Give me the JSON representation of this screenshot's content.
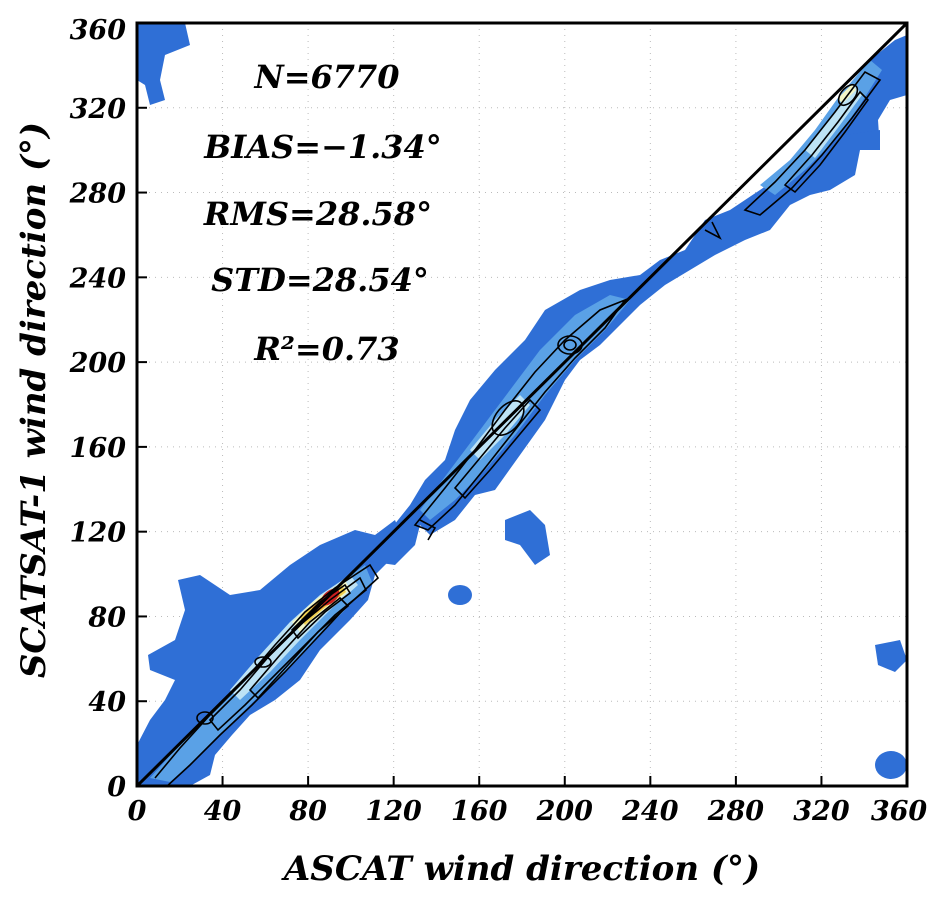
{
  "chart_data": {
    "type": "heatmap",
    "title": "",
    "xlabel": "ASCAT wind direction (°)",
    "ylabel": "SCATSAT-1 wind direction (°)",
    "xlim": [
      0,
      360
    ],
    "ylim": [
      0,
      360
    ],
    "xticks": [
      "0",
      "40",
      "80",
      "120",
      "160",
      "200",
      "240",
      "280",
      "320",
      "360"
    ],
    "yticks": [
      "0",
      "40",
      "80",
      "120",
      "160",
      "200",
      "240",
      "280",
      "320",
      "360"
    ],
    "grid": "dotted",
    "reference_line": {
      "x": [
        0,
        360
      ],
      "y": [
        0,
        360
      ]
    },
    "annotations": {
      "n": "N=6770",
      "bias": "BIAS=−1.34°",
      "rms": "RMS=28.58°",
      "std": "STD=28.54°",
      "r2": "R²=0.73"
    },
    "density_peaks": [
      {
        "x": 90,
        "y": 90,
        "level": 1.0
      },
      {
        "x": 88,
        "y": 88,
        "level": 0.8
      },
      {
        "x": 58,
        "y": 60,
        "level": 0.4
      },
      {
        "x": 175,
        "y": 175,
        "level": 0.35
      },
      {
        "x": 200,
        "y": 208,
        "level": 0.3
      },
      {
        "x": 332,
        "y": 330,
        "level": 0.55
      },
      {
        "x": 310,
        "y": 310,
        "level": 0.3
      }
    ],
    "colors": {
      "outer": "#2f6fd6",
      "mid": "#5aa1e6",
      "inner": "#bde3f5",
      "pale": "#f2f6c8",
      "yellow": "#f0d050",
      "orange": "#e88a2a",
      "red": "#cc1f1f"
    }
  }
}
